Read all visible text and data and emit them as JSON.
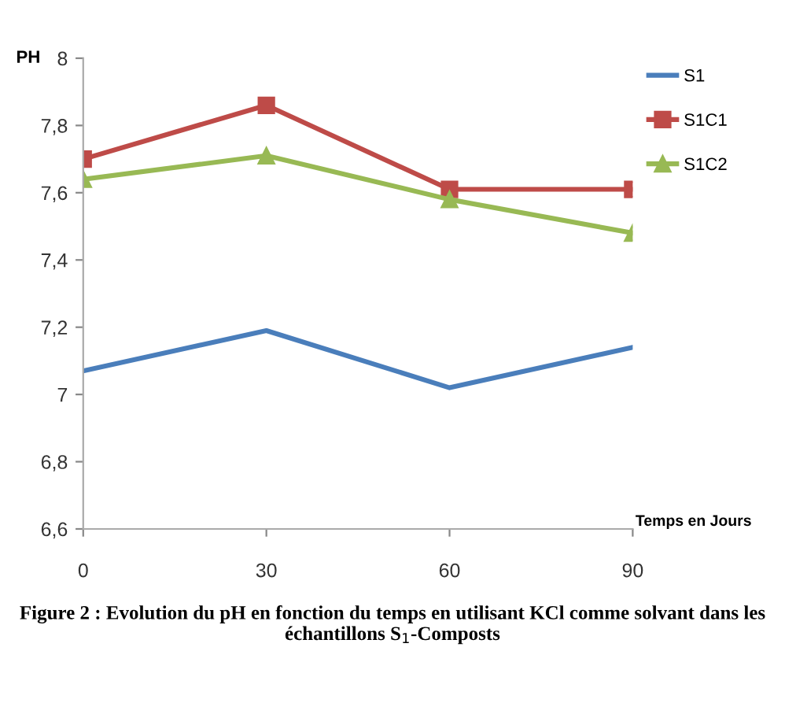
{
  "chart_data": {
    "type": "line",
    "ylabel": "PH",
    "xlabel": "Temps en Jours",
    "annotations": [
      "Figure 2 : Evolution du pH en fonction du temps en utilisant KCl comme solvant dans les échantillons S$_{1}$-Composts"
    ],
    "x": [
      0,
      30,
      60,
      90
    ],
    "xlim": [
      0,
      90
    ],
    "xticks": [
      0,
      30,
      60,
      90
    ],
    "ylim": [
      6.6,
      8
    ],
    "yticks": [
      {
        "value": 6.6,
        "label": "6,6"
      },
      {
        "value": 6.8,
        "label": "6,8"
      },
      {
        "value": 7,
        "label": "7"
      },
      {
        "value": 7.2,
        "label": "7,2"
      },
      {
        "value": 7.4,
        "label": "7,4"
      },
      {
        "value": 7.6,
        "label": "7,6"
      },
      {
        "value": 7.8,
        "label": "7,8"
      },
      {
        "value": 8,
        "label": "8"
      }
    ],
    "grid": false,
    "legend": "top right",
    "series": [
      {
        "name": "S1",
        "color": "#4a7ebb",
        "marker": "none",
        "values": [
          7.07,
          7.19,
          7.02,
          7.14
        ]
      },
      {
        "name": "S1C1",
        "color": "#be4b48",
        "marker": "square",
        "values": [
          7.7,
          7.86,
          7.61,
          7.61
        ]
      },
      {
        "name": "S1C2",
        "color": "#98b954",
        "marker": "triangle",
        "values": [
          7.64,
          7.71,
          7.58,
          7.48
        ]
      }
    ]
  }
}
